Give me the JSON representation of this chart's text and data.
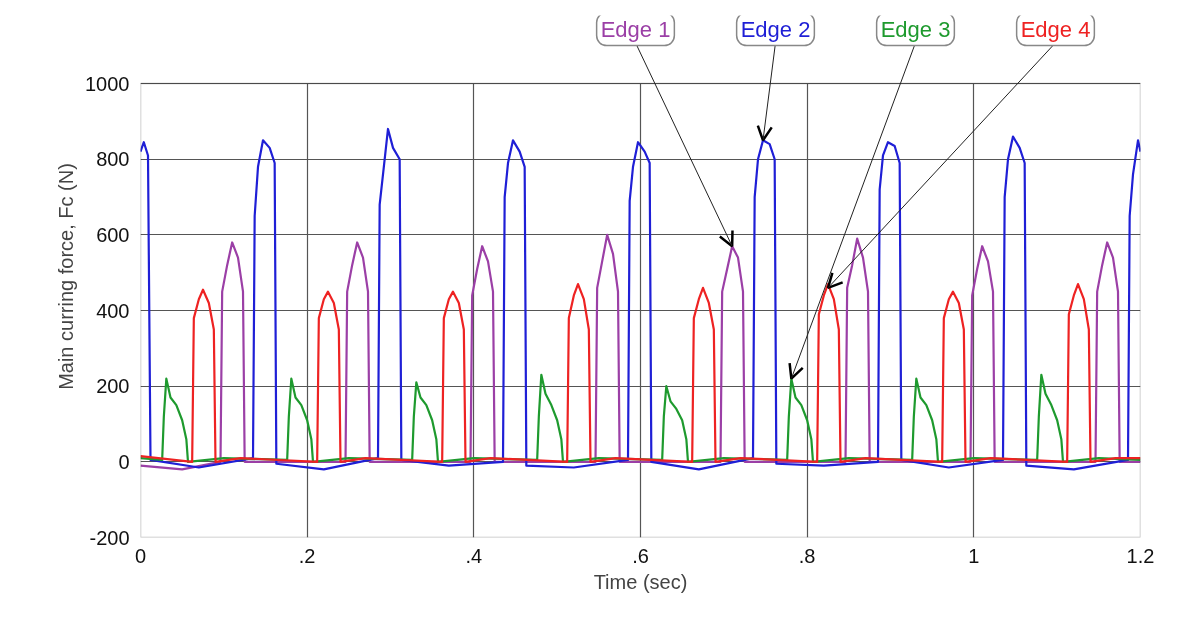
{
  "chart_data": {
    "type": "line",
    "xlabel": "Time (sec)",
    "ylabel": "Main curring force, Fc (N)",
    "xlim": [
      0,
      1.2
    ],
    "ylim": [
      -200,
      1000
    ],
    "xticks": [
      0,
      {
        "value": 0.2,
        "label": ".2"
      },
      {
        "value": 0.4,
        "label": ".4"
      },
      {
        "value": 0.6,
        "label": ".6"
      },
      {
        "value": 0.8,
        "label": ".8"
      },
      1,
      1.2
    ],
    "yticks": [
      -200,
      0,
      200,
      400,
      600,
      800,
      1000
    ],
    "grid": true,
    "line_style": "solid",
    "series": [
      {
        "color": "#9b3fa6",
        "x": [
          0,
          0.05,
          0.096,
          0.098,
          0.104,
          0.11,
          0.117,
          0.123,
          0.125,
          0.246,
          0.248,
          0.254,
          0.26,
          0.267,
          0.273,
          0.275,
          0.396,
          0.398,
          0.404,
          0.41,
          0.417,
          0.423,
          0.425,
          0.546,
          0.548,
          0.554,
          0.56,
          0.567,
          0.573,
          0.575,
          0.696,
          0.698,
          0.704,
          0.71,
          0.717,
          0.723,
          0.725,
          0.846,
          0.848,
          0.854,
          0.86,
          0.867,
          0.873,
          0.875,
          0.996,
          0.998,
          1.004,
          1.01,
          1.017,
          1.023,
          1.025,
          1.146,
          1.148,
          1.154,
          1.16,
          1.167,
          1.173,
          1.175,
          1.2
        ],
        "values": [
          -10,
          -20,
          0,
          450,
          520,
          580,
          540,
          450,
          0,
          0,
          450,
          520,
          580,
          540,
          450,
          0,
          0,
          440,
          510,
          570,
          530,
          450,
          0,
          0,
          460,
          530,
          600,
          550,
          450,
          0,
          0,
          450,
          510,
          570,
          540,
          450,
          0,
          0,
          460,
          520,
          590,
          540,
          450,
          0,
          0,
          440,
          510,
          570,
          530,
          450,
          0,
          0,
          450,
          520,
          580,
          540,
          450,
          0,
          0
        ]
      },
      {
        "color": "#1f1fd6",
        "x": [
          0,
          0.004,
          0.009,
          0.012,
          0.07,
          0.135,
          0.137,
          0.141,
          0.147,
          0.155,
          0.161,
          0.163,
          0.22,
          0.285,
          0.287,
          0.292,
          0.297,
          0.303,
          0.311,
          0.313,
          0.37,
          0.435,
          0.437,
          0.441,
          0.447,
          0.455,
          0.461,
          0.463,
          0.52,
          0.585,
          0.587,
          0.591,
          0.597,
          0.605,
          0.611,
          0.613,
          0.67,
          0.735,
          0.737,
          0.741,
          0.747,
          0.755,
          0.761,
          0.763,
          0.82,
          0.885,
          0.887,
          0.891,
          0.897,
          0.905,
          0.911,
          0.913,
          0.97,
          1.035,
          1.037,
          1.041,
          1.047,
          1.055,
          1.061,
          1.063,
          1.12,
          1.185,
          1.187,
          1.191,
          1.197,
          1.2
        ],
        "values": [
          820,
          845,
          810,
          5,
          -15,
          10,
          650,
          780,
          850,
          830,
          790,
          -5,
          -20,
          10,
          680,
          780,
          880,
          830,
          800,
          5,
          -10,
          0,
          700,
          790,
          850,
          820,
          780,
          -10,
          -15,
          5,
          690,
          780,
          845,
          820,
          790,
          0,
          -20,
          10,
          700,
          800,
          850,
          840,
          800,
          -5,
          -10,
          0,
          720,
          810,
          845,
          835,
          790,
          5,
          -15,
          5,
          700,
          800,
          860,
          830,
          790,
          -10,
          -20,
          5,
          650,
          760,
          850,
          820
        ]
      },
      {
        "color": "#1e9a2e",
        "x": [
          0,
          0.026,
          0.028,
          0.031,
          0.036,
          0.043,
          0.05,
          0.055,
          0.057,
          0.1,
          0.176,
          0.178,
          0.181,
          0.186,
          0.193,
          0.2,
          0.205,
          0.207,
          0.25,
          0.326,
          0.328,
          0.331,
          0.336,
          0.343,
          0.35,
          0.355,
          0.357,
          0.4,
          0.476,
          0.478,
          0.481,
          0.486,
          0.493,
          0.5,
          0.505,
          0.507,
          0.55,
          0.626,
          0.628,
          0.631,
          0.636,
          0.643,
          0.65,
          0.655,
          0.657,
          0.7,
          0.776,
          0.778,
          0.781,
          0.786,
          0.793,
          0.8,
          0.805,
          0.807,
          0.85,
          0.926,
          0.928,
          0.931,
          0.936,
          0.943,
          0.95,
          0.955,
          0.957,
          1.0,
          1.076,
          1.078,
          1.081,
          1.086,
          1.093,
          1.1,
          1.105,
          1.107,
          1.15,
          1.2
        ],
        "values": [
          10,
          5,
          120,
          220,
          170,
          150,
          110,
          60,
          0,
          10,
          5,
          120,
          220,
          170,
          150,
          110,
          60,
          0,
          10,
          5,
          120,
          210,
          170,
          150,
          110,
          60,
          0,
          10,
          5,
          120,
          230,
          180,
          150,
          110,
          60,
          0,
          10,
          5,
          120,
          200,
          160,
          140,
          110,
          60,
          0,
          10,
          5,
          120,
          220,
          170,
          150,
          110,
          60,
          0,
          10,
          5,
          120,
          220,
          170,
          150,
          110,
          60,
          0,
          10,
          5,
          120,
          230,
          180,
          150,
          110,
          60,
          0,
          10,
          5
        ]
      },
      {
        "color": "#ee2222",
        "x": [
          0,
          0.062,
          0.064,
          0.07,
          0.075,
          0.082,
          0.088,
          0.09,
          0.12,
          0.212,
          0.214,
          0.22,
          0.225,
          0.232,
          0.238,
          0.24,
          0.27,
          0.362,
          0.364,
          0.37,
          0.375,
          0.382,
          0.388,
          0.39,
          0.42,
          0.512,
          0.514,
          0.52,
          0.525,
          0.532,
          0.538,
          0.54,
          0.57,
          0.662,
          0.664,
          0.67,
          0.675,
          0.682,
          0.688,
          0.69,
          0.72,
          0.812,
          0.814,
          0.82,
          0.825,
          0.832,
          0.838,
          0.84,
          0.87,
          0.962,
          0.964,
          0.97,
          0.975,
          0.982,
          0.988,
          0.99,
          1.02,
          1.112,
          1.114,
          1.12,
          1.125,
          1.132,
          1.138,
          1.14,
          1.17,
          1.2
        ],
        "values": [
          15,
          0,
          380,
          430,
          455,
          420,
          350,
          0,
          10,
          0,
          380,
          430,
          450,
          420,
          350,
          0,
          10,
          0,
          380,
          430,
          450,
          420,
          350,
          0,
          10,
          0,
          380,
          440,
          470,
          430,
          350,
          0,
          10,
          0,
          380,
          430,
          460,
          420,
          350,
          0,
          10,
          0,
          390,
          440,
          470,
          430,
          350,
          0,
          10,
          0,
          380,
          430,
          450,
          420,
          350,
          0,
          10,
          0,
          390,
          440,
          470,
          430,
          350,
          0,
          10,
          10
        ]
      }
    ],
    "annotations": [
      {
        "text": "Edge 1",
        "x": 0.71,
        "y": 570
      },
      {
        "text": "Edge 2",
        "x": 0.747,
        "y": 850
      },
      {
        "text": "Edge 3",
        "x": 0.781,
        "y": 220
      },
      {
        "text": "Edge 4",
        "x": 0.825,
        "y": 460
      }
    ]
  }
}
